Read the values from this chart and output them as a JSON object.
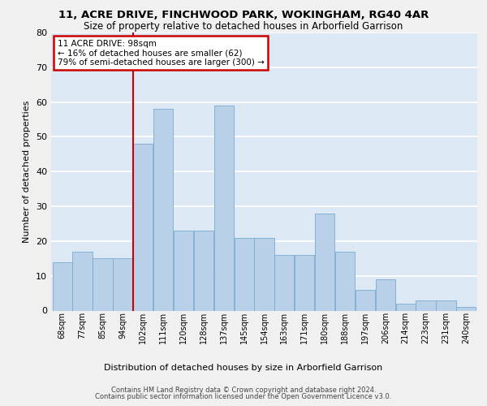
{
  "title1": "11, ACRE DRIVE, FINCHWOOD PARK, WOKINGHAM, RG40 4AR",
  "title2": "Size of property relative to detached houses in Arborfield Garrison",
  "xlabel": "Distribution of detached houses by size in Arborfield Garrison",
  "ylabel": "Number of detached properties",
  "categories": [
    "68sqm",
    "77sqm",
    "85sqm",
    "94sqm",
    "102sqm",
    "111sqm",
    "120sqm",
    "128sqm",
    "137sqm",
    "145sqm",
    "154sqm",
    "163sqm",
    "171sqm",
    "180sqm",
    "188sqm",
    "197sqm",
    "206sqm",
    "214sqm",
    "223sqm",
    "231sqm",
    "240sqm"
  ],
  "values": [
    14,
    17,
    15,
    15,
    48,
    58,
    23,
    23,
    59,
    21,
    21,
    16,
    16,
    28,
    17,
    6,
    9,
    2,
    3,
    3,
    1
  ],
  "bar_color": "#b8d0e8",
  "bar_edge_color": "#7aaad0",
  "background_color": "#dce9f5",
  "grid_color": "#ffffff",
  "annotation_line1": "11 ACRE DRIVE: 98sqm",
  "annotation_line2": "← 16% of detached houses are smaller (62)",
  "annotation_line3": "79% of semi-detached houses are larger (300) →",
  "annotation_box_color": "#ffffff",
  "annotation_box_edge": "#cc0000",
  "vline_color": "#cc0000",
  "ylim": [
    0,
    80
  ],
  "yticks": [
    0,
    10,
    20,
    30,
    40,
    50,
    60,
    70,
    80
  ],
  "title_fontsize": 9.5,
  "subtitle_fontsize": 8.5,
  "footer1": "Contains HM Land Registry data © Crown copyright and database right 2024.",
  "footer2": "Contains public sector information licensed under the Open Government Licence v3.0.",
  "fig_bg": "#f0f0f0"
}
